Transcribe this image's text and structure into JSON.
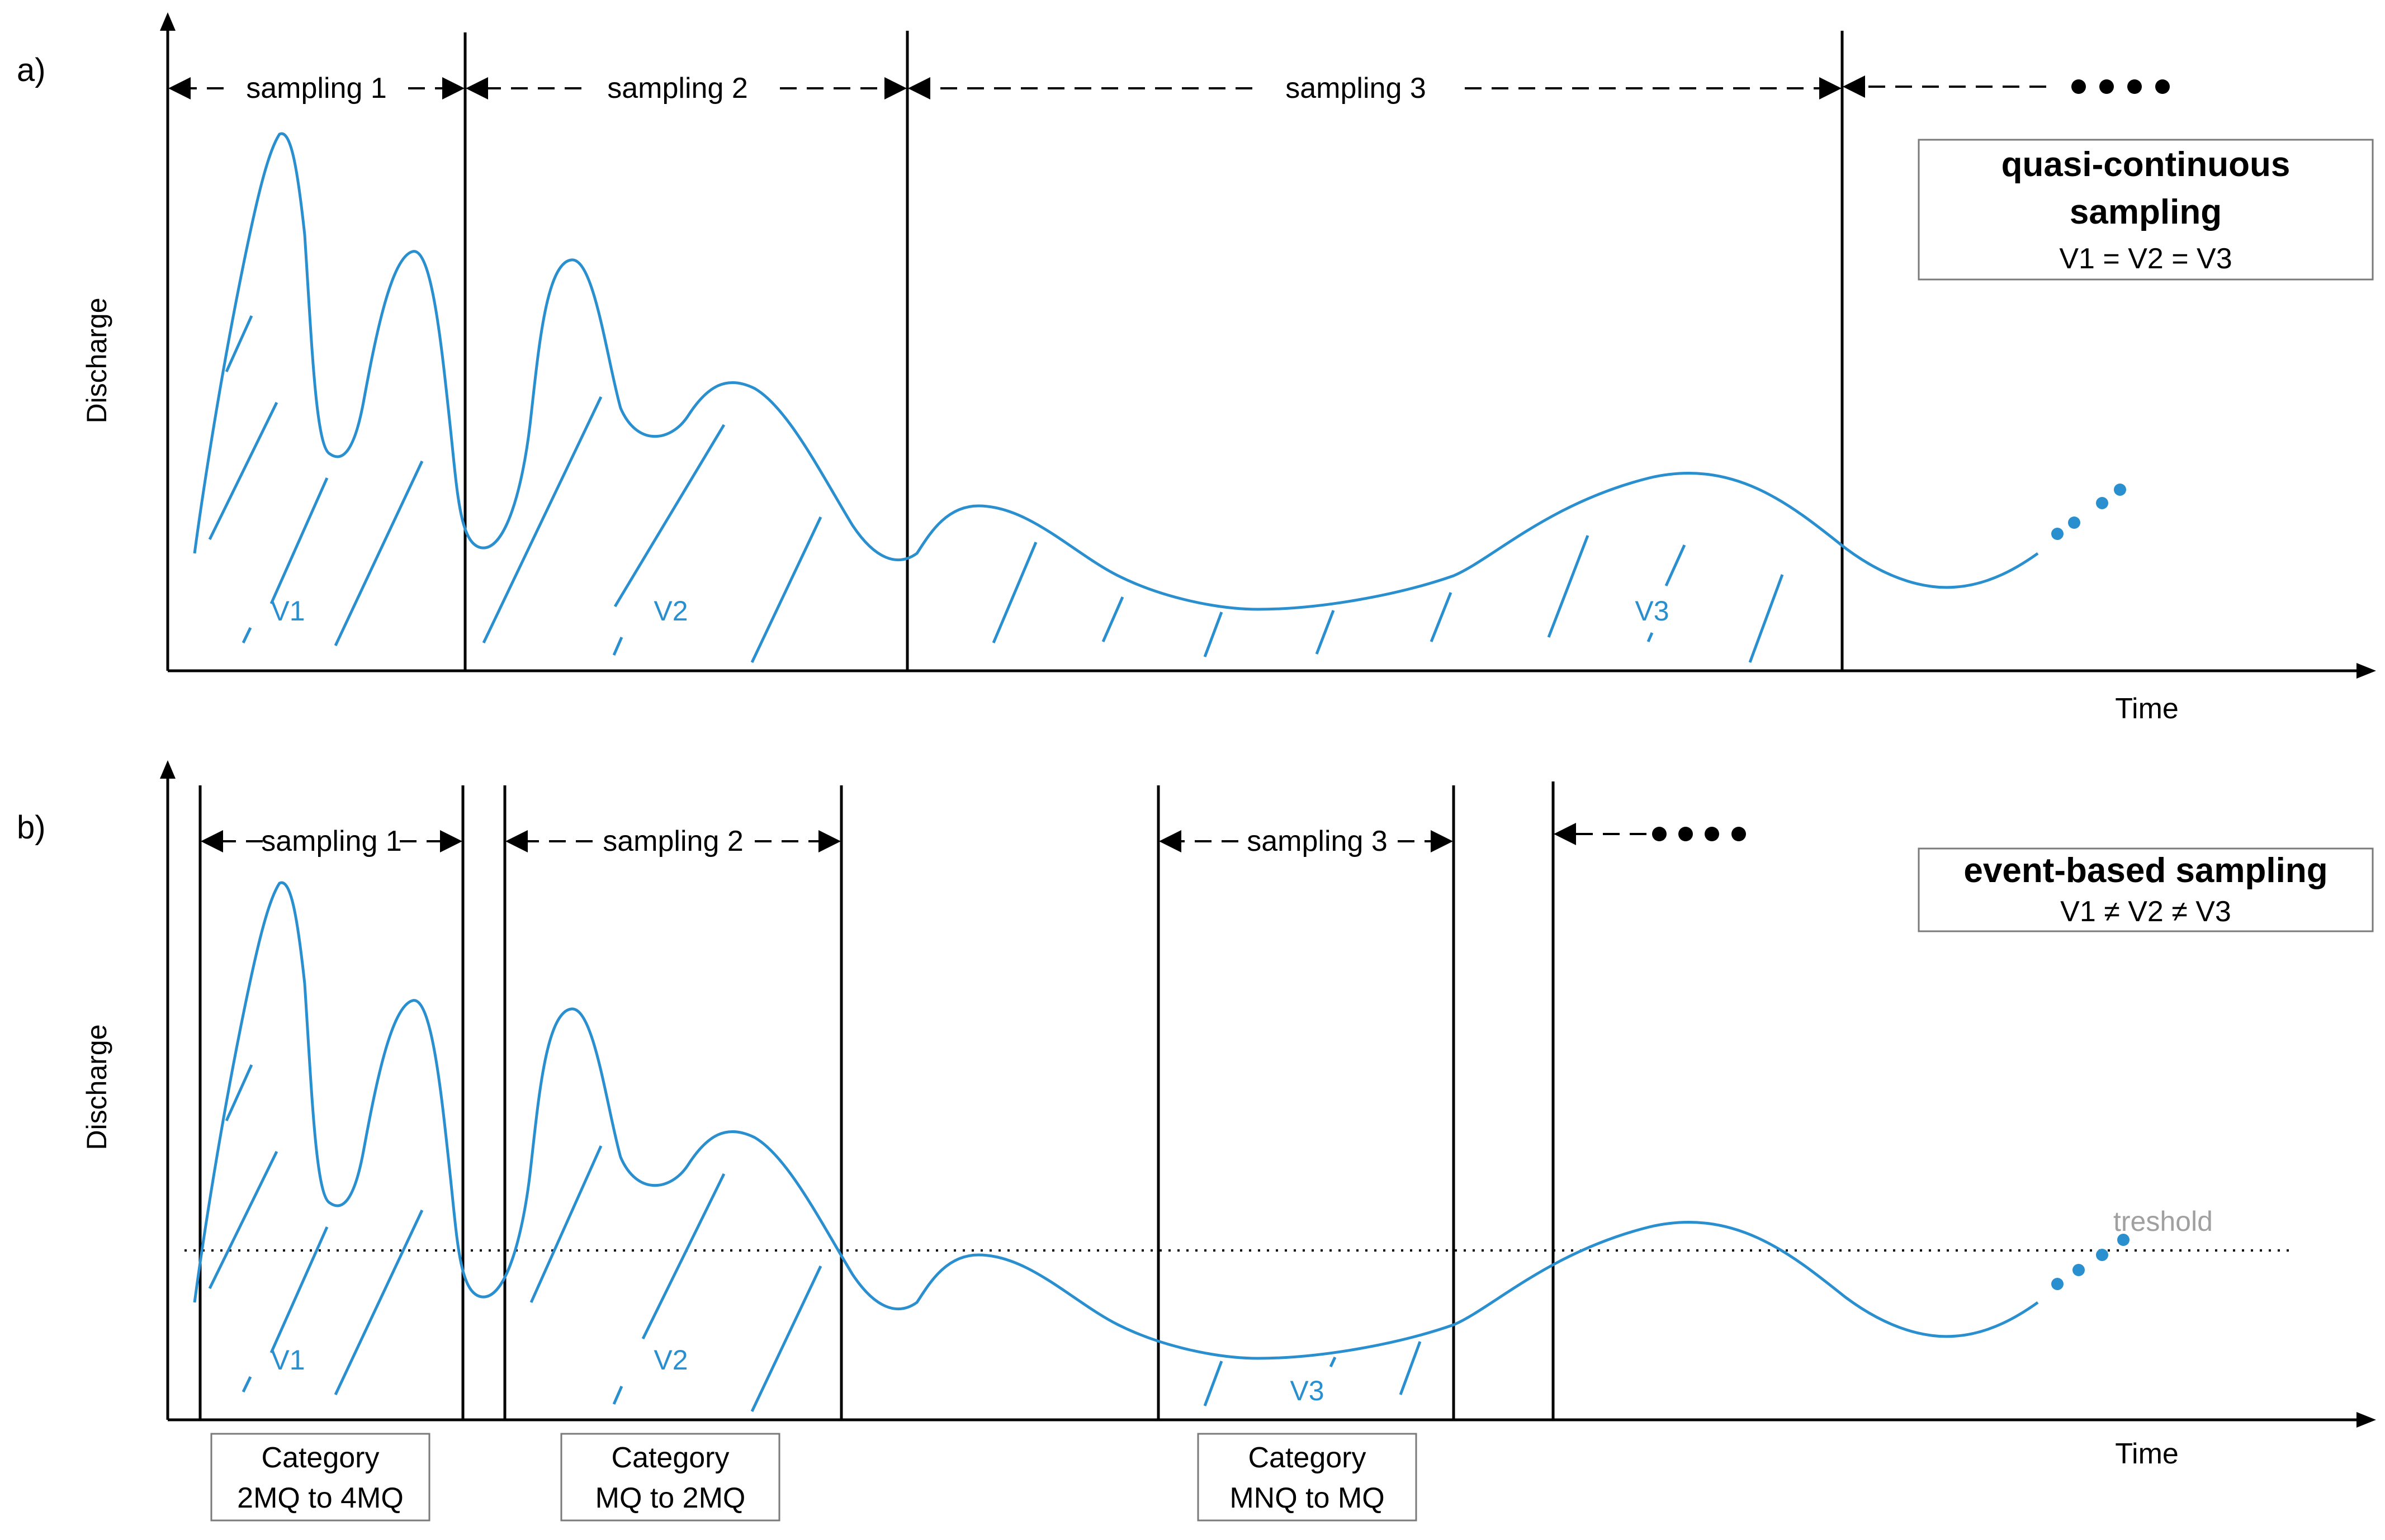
{
  "panel_a": {
    "label": "a)",
    "ylabel": "Discharge",
    "xlabel": "Time",
    "samplings": [
      "sampling 1",
      "sampling 2",
      "sampling 3"
    ],
    "volumes": [
      "V1",
      "V2",
      "V3"
    ],
    "info_title_line1": "quasi-continuous",
    "info_title_line2": "sampling",
    "info_relation": "V1 = V2 = V3"
  },
  "panel_b": {
    "label": "b)",
    "ylabel": "Discharge",
    "xlabel": "Time",
    "samplings": [
      "sampling 1",
      "sampling 2",
      "sampling 3"
    ],
    "volumes": [
      "V1",
      "V2",
      "V3"
    ],
    "info_title": "event-based sampling",
    "info_relation": "V1 ≠  V2 ≠  V3",
    "threshold_label": "treshold",
    "categories": [
      {
        "line1": "Category",
        "line2": "2MQ to 4MQ"
      },
      {
        "line1": "Category",
        "line2": "MQ to 2MQ"
      },
      {
        "line1": "Category",
        "line2": "MNQ to MQ"
      }
    ]
  },
  "colors": {
    "curve": "#2a8fcf",
    "threshold_label": "#a0a0a0",
    "box_border": "#7a7a7a"
  }
}
